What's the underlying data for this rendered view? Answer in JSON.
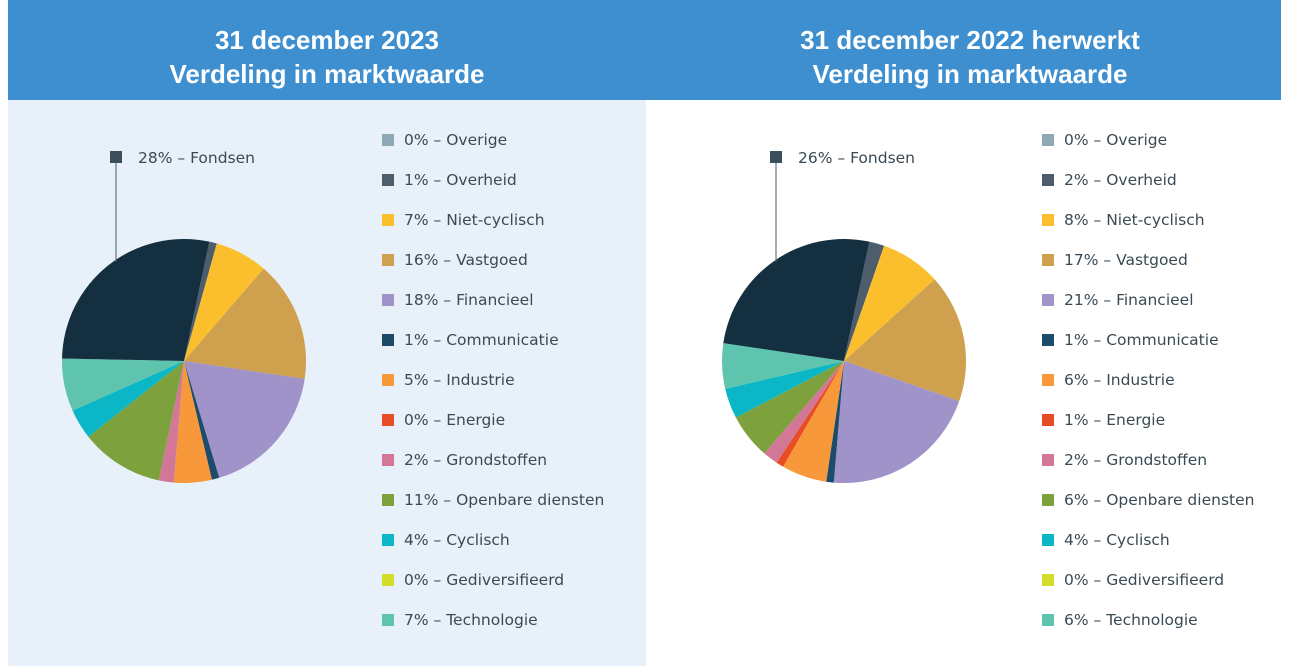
{
  "chart_data": [
    {
      "type": "pie",
      "title": "31 december 2023",
      "subtitle": "Verdeling in marktwaarde",
      "separator": " – ",
      "categories": [
        "Overige",
        "Overheid",
        "Niet-cyclisch",
        "Vastgoed",
        "Financieel",
        "Communicatie",
        "Industrie",
        "Energie",
        "Grondstoffen",
        "Openbare diensten",
        "Cyclisch",
        "Gediversifieerd",
        "Technologie",
        "Fondsen"
      ],
      "values": [
        0,
        1,
        7,
        16,
        18,
        1,
        5,
        0,
        2,
        11,
        4,
        0,
        7,
        28
      ],
      "value_labels": [
        "0%",
        "1%",
        "7%",
        "16%",
        "18%",
        "1%",
        "5%",
        "0%",
        "2%",
        "11%",
        "4%",
        "0%",
        "7%",
        "28%"
      ],
      "colors": [
        "#8ea9b5",
        "#4d5d6b",
        "#fbbf2e",
        "#cfa04e",
        "#a093c9",
        "#1d4c6b",
        "#f7983a",
        "#e84e25",
        "#d27896",
        "#7da13c",
        "#0bb7c7",
        "#d4de2a",
        "#5fc4ae",
        "#142f40"
      ]
    },
    {
      "type": "pie",
      "title": "31 december 2022 herwerkt",
      "subtitle": "Verdeling in marktwaarde",
      "separator": " – ",
      "categories": [
        "Overige",
        "Overheid",
        "Niet-cyclisch",
        "Vastgoed",
        "Financieel",
        "Communicatie",
        "Industrie",
        "Energie",
        "Grondstoffen",
        "Openbare diensten",
        "Cyclisch",
        "Gediversifieerd",
        "Technologie",
        "Fondsen"
      ],
      "values": [
        0,
        2,
        8,
        17,
        21,
        1,
        6,
        1,
        2,
        6,
        4,
        0,
        6,
        26
      ],
      "value_labels": [
        "0%",
        "2%",
        "8%",
        "17%",
        "21%",
        "1%",
        "6%",
        "1%",
        "2%",
        "6%",
        "4%",
        "0%",
        "6%",
        "26%"
      ],
      "colors": [
        "#8ea9b5",
        "#4d5d6b",
        "#fbbf2e",
        "#cfa04e",
        "#a093c9",
        "#1d4c6b",
        "#f7983a",
        "#e84e25",
        "#d27896",
        "#7da13c",
        "#0bb7c7",
        "#d4de2a",
        "#5fc4ae",
        "#142f40"
      ]
    }
  ]
}
